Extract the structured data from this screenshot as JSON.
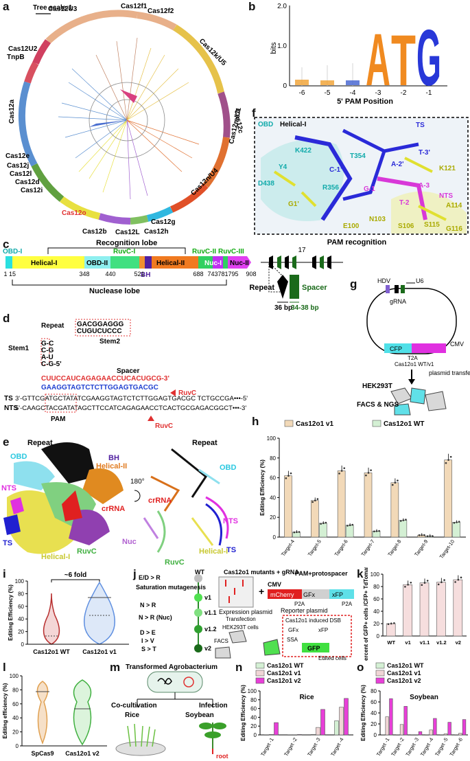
{
  "panel_letters": [
    "a",
    "b",
    "c",
    "d",
    "e",
    "f",
    "g",
    "h",
    "i",
    "j",
    "k",
    "l",
    "m",
    "n",
    "o"
  ],
  "tree": {
    "scale_label": "Tree scale:1",
    "clades": [
      "Cas12U3",
      "Cas12f1",
      "Cas12f2",
      "Cas12k/U5",
      "Cas12c",
      "Cas12m/U1",
      "Cas12n/U4",
      "Cas12g",
      "Cas12h",
      "Cas12L",
      "Cas12b",
      "Cas12o",
      "Cas12i",
      "Cas12d",
      "Cas12l",
      "Cas12j",
      "Cas12e",
      "Cas12a",
      "TnpB",
      "Cas12U2"
    ]
  },
  "logo": {
    "ylabel": "bits",
    "xlabel": "5' PAM Position",
    "yticks": [
      "0",
      "1.0",
      "2.0"
    ],
    "positions": [
      "-6",
      "-5",
      "-4",
      "-3",
      "-2",
      "-1"
    ],
    "letters": [
      "A",
      "T",
      "G"
    ]
  },
  "pam_struct": {
    "title_obd": "OBD",
    "title_helical": "Helical-I",
    "caption": "PAM recognition",
    "labels": [
      "TS",
      "T-3'",
      "A-2'",
      "K422",
      "T354",
      "K121",
      "Y4",
      "C-1'",
      "A-3",
      "NTS",
      "D438",
      "R356",
      "G-1",
      "T-2",
      "A114",
      "G1'",
      "N103",
      "E100",
      "S106",
      "S115",
      "G116"
    ]
  },
  "domain_map": {
    "title_top": "Recognition lobe",
    "title_bottom": "Nuclease lobe",
    "domains": [
      "OBD-I",
      "Helical-I",
      "OBD-II",
      "RuvC-I",
      "BH",
      "Helical-II",
      "RuvC-II",
      "RuvC-III",
      "Nuc-I",
      "Nuc-II"
    ],
    "positions": [
      "1",
      "15",
      "348",
      "440",
      "521",
      "688",
      "743",
      "781",
      "795",
      "908"
    ],
    "repeat_label": "Repeat",
    "spacer_label": "Spacer",
    "repeat_len": "36 bp",
    "spacer_len": "34-38 bp",
    "count": "17"
  },
  "rna": {
    "repeat": "Repeat",
    "stem1": "Stem1",
    "stem2": "Stem2",
    "spacer": "Spacer",
    "ts": "TS",
    "nts": "NTS",
    "pam": "PAM",
    "ruvc": "RuvC",
    "crrna_seq": "CUUCCAUCAGAGAACCUCACUGCG-3'",
    "ts_seq": "3'-GTTCGATGCTATATCGAAGGTAGTCTCTTGGAGTGACGC TCTGCCGA•••-5'",
    "nts_seq": "5'-CAAGCTACGATATAGCTTCCATCAGAGAACCTCACTGCGAGACGGCT•••-3'"
  },
  "cryo": {
    "labels": [
      "Repeat",
      "OBD",
      "BH",
      "Helical-II",
      "crRNA",
      "NTS",
      "TS",
      "Helical-I",
      "RuvC",
      "Nuc"
    ],
    "rotation": "180°"
  },
  "plasmid": {
    "hdv": "HDV",
    "u6": "U6",
    "grna": "gRNA",
    "cfp": "CFP",
    "t2a": "T2A",
    "cas": "Cas12o1 WT/v1",
    "cmv": "CMV",
    "cell": "HEK293T",
    "transfection": "plasmid transfection",
    "readout": "FACS & NGS"
  },
  "chart_data": [
    {
      "type": "bar",
      "id": "h",
      "ylabel": "Editing Efficiency (%)",
      "ylim": [
        0,
        100
      ],
      "yticks": [
        0,
        20,
        40,
        60,
        80,
        100
      ],
      "categories": [
        "Target-4",
        "Target-5",
        "Target-6",
        "Target-7",
        "Target-8",
        "Target-9",
        "Target-10"
      ],
      "series": [
        {
          "name": "Cas12o1 v1",
          "values": [
            62,
            37,
            67,
            65,
            55,
            2,
            78
          ],
          "color": "#f2d9b8"
        },
        {
          "name": "Cas12o1 WT",
          "values": [
            5,
            14,
            12,
            6,
            17,
            1,
            15
          ],
          "color": "#d4f0d4"
        }
      ]
    },
    {
      "type": "violin",
      "id": "i",
      "ylabel": "Editing Efficiency (%)",
      "ylim": [
        0,
        100
      ],
      "yticks": [
        0,
        20,
        40,
        60,
        80,
        100
      ],
      "categories": [
        "Cas12o1 WT",
        "Cas12o1 v1"
      ],
      "annotation": "~6 fold"
    },
    {
      "type": "bar",
      "id": "k",
      "ylabel": "Percent of GFP+ cells /CFP+ TdTomato+ cells",
      "ylim": [
        0,
        100
      ],
      "yticks": [
        0,
        20,
        40,
        60,
        80,
        100
      ],
      "categories": [
        "WT",
        "v1",
        "v1.1",
        "v1.2",
        "v2"
      ],
      "values": [
        20,
        83,
        86,
        87,
        91
      ],
      "color": "#f6dede"
    },
    {
      "type": "violin",
      "id": "l",
      "ylabel": "Editing efficiency (%)",
      "ylim": [
        0,
        100
      ],
      "yticks": [
        0,
        20,
        40,
        60,
        80,
        100
      ],
      "categories": [
        "SpCas9",
        "Cas12o1 v2"
      ]
    },
    {
      "type": "bar",
      "id": "n",
      "title": "Rice",
      "ylabel": "Editing Efficiency (%)",
      "ylim": [
        0,
        100
      ],
      "yticks": [
        0,
        20,
        40,
        60,
        80,
        100
      ],
      "categories": [
        "Target -1",
        "Target -2",
        "Target -3",
        "Target -4"
      ],
      "series": [
        {
          "name": "Cas12o1 WT",
          "values": [
            0,
            0,
            1,
            32
          ],
          "color": "#d4f0d4"
        },
        {
          "name": "Cas12o1 v1",
          "values": [
            1,
            0,
            17,
            63
          ],
          "color": "#f0d6d6"
        },
        {
          "name": "Cas12o1 v2",
          "values": [
            28,
            1,
            58,
            83
          ],
          "color": "#e83fd8"
        }
      ]
    },
    {
      "type": "bar",
      "id": "o",
      "title": "Soybean",
      "ylabel": "Editing Efficiency (%)",
      "ylim": [
        0,
        80
      ],
      "yticks": [
        0,
        20,
        40,
        60,
        80
      ],
      "categories": [
        "Target -1",
        "Target -2",
        "Target -3",
        "Target -4",
        "Target -5",
        "Target -6"
      ],
      "series": [
        {
          "name": "Cas12o1 WT",
          "values": [
            0,
            0,
            0,
            0,
            0,
            0
          ],
          "color": "#d4f0d4"
        },
        {
          "name": "Cas12o1 v1",
          "values": [
            33,
            19,
            0,
            9,
            2,
            3
          ],
          "color": "#f0d6d6"
        },
        {
          "name": "Cas12o1 v2",
          "values": [
            66,
            52,
            6,
            30,
            23,
            28
          ],
          "color": "#e83fd8"
        }
      ]
    }
  ],
  "mutagenesis": {
    "wt": "WT",
    "steps": [
      "E/D > R",
      "Saturation mutagenesis",
      "N > R",
      "N > R (Nuc)",
      "D > E",
      "I > V",
      "S > T"
    ],
    "variants": [
      "v1",
      "v1.1",
      "v1.2",
      "v2"
    ],
    "title": "Cas12o1 mutants + gRNA",
    "expression": "Expression plasmid",
    "reporter": "Reporter plasmid",
    "pam": "PAM+protospacer",
    "cmv": "CMV",
    "mcherry": "mCherry",
    "gfx": "GFx",
    "xfp": "xFP",
    "p2a": "P2A",
    "transfection": "Transfection",
    "cell": "HEK293T cells",
    "facs": "FACS",
    "dsb": "Cas12o1 induced DSB",
    "ssa": "SSA",
    "gfp": "GFP",
    "edited": "Edited cells"
  },
  "agro": {
    "title": "Transformed Agrobacterium",
    "cocult": "Co-cultivation",
    "infection": "Infection",
    "rice": "Rice",
    "soybean": "Soybean",
    "root": "root"
  }
}
